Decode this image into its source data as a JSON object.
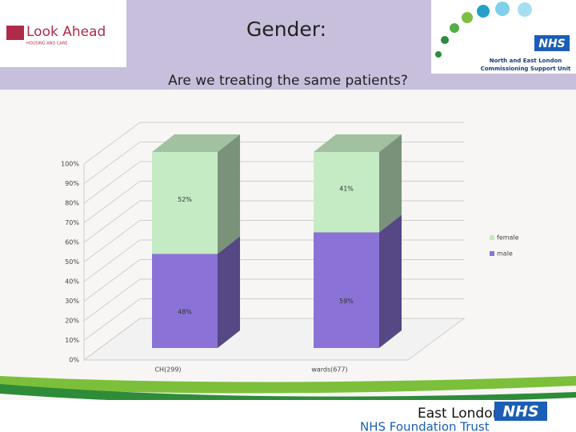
{
  "header": {
    "title": "Gender:",
    "subtitle": "Are we treating the same patients?"
  },
  "logos": {
    "left_name": "Look Ahead",
    "left_tagline": "HOUSING AND CARE",
    "right_nhs": "NHS",
    "right_line1": "North and East London",
    "right_line2": "Commissioning Support Unit",
    "footer_name": "East London",
    "footer_nhs": "NHS",
    "footer_trust": "NHS Foundation Trust"
  },
  "chart_data": {
    "type": "bar3d_stacked",
    "categories": [
      "CH(299)",
      "wards(677)"
    ],
    "series": [
      {
        "name": "male",
        "color": "#8b72d6",
        "values": [
          48,
          59
        ],
        "value_labels": [
          "48%",
          "59%"
        ]
      },
      {
        "name": "female",
        "color": "#c4ebc4",
        "values": [
          52,
          41
        ],
        "value_labels": [
          "52%",
          "41%"
        ]
      }
    ],
    "ylim": [
      0,
      100
    ],
    "yticks": [
      {
        "value": 0,
        "label": "0%"
      },
      {
        "value": 10,
        "label": "10%"
      },
      {
        "value": 20,
        "label": "20%"
      },
      {
        "value": 30,
        "label": "30%"
      },
      {
        "value": 40,
        "label": "40%"
      },
      {
        "value": 50,
        "label": "50%"
      },
      {
        "value": 60,
        "label": "60%"
      },
      {
        "value": 70,
        "label": "70%"
      },
      {
        "value": 80,
        "label": "80%"
      },
      {
        "value": 90,
        "label": "90%"
      },
      {
        "value": 100,
        "label": "100%"
      }
    ],
    "grid": true,
    "legend": "right"
  }
}
